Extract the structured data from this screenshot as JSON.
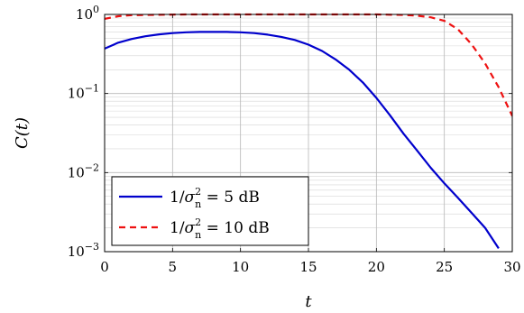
{
  "chart_data": {
    "type": "line",
    "xlabel": "t",
    "ylabel": "C(t)",
    "xlim": [
      0,
      30
    ],
    "ylim": [
      0.001,
      1
    ],
    "yscale": "log",
    "grid": true,
    "legend_position": "bottom-left",
    "x_ticks": [
      "0",
      "5",
      "10",
      "15",
      "20",
      "25",
      "30"
    ],
    "y_ticks": [
      {
        "base": "10",
        "exp": "0"
      },
      {
        "base": "10",
        "exp": "−1"
      },
      {
        "base": "10",
        "exp": "−2"
      },
      {
        "base": "10",
        "exp": "−3"
      }
    ],
    "series": [
      {
        "name": "1/σn² = 5 dB",
        "color": "#0000cc",
        "dash": "solid",
        "x": [
          0,
          1,
          2,
          3,
          4,
          5,
          6,
          7,
          8,
          9,
          10,
          11,
          12,
          13,
          14,
          15,
          16,
          17,
          18,
          19,
          20,
          21,
          22,
          23,
          24,
          25,
          26,
          27,
          28,
          29
        ],
        "y": [
          0.37,
          0.44,
          0.49,
          0.53,
          0.56,
          0.58,
          0.595,
          0.6,
          0.6,
          0.6,
          0.595,
          0.58,
          0.555,
          0.52,
          0.475,
          0.415,
          0.345,
          0.27,
          0.2,
          0.138,
          0.088,
          0.053,
          0.031,
          0.019,
          0.0115,
          0.0073,
          0.0048,
          0.0031,
          0.002,
          0.0011
        ]
      },
      {
        "name": "1/σn² = 10 dB",
        "color": "#ee1111",
        "dash": "dashed",
        "x": [
          0,
          1,
          2,
          4,
          6,
          8,
          10,
          12,
          14,
          16,
          18,
          20,
          22,
          23,
          24,
          25,
          26,
          27,
          28,
          29,
          30
        ],
        "y": [
          0.88,
          0.95,
          0.98,
          0.99,
          1.0,
          1.0,
          1.0,
          1.0,
          1.0,
          1.0,
          1.0,
          1.0,
          0.985,
          0.965,
          0.92,
          0.83,
          0.65,
          0.42,
          0.24,
          0.12,
          0.052
        ]
      }
    ],
    "legend": [
      {
        "prefix": "1/",
        "sym": "σ",
        "sub": "n",
        "sup": "2",
        "suffix": " = 5 dB"
      },
      {
        "prefix": "1/",
        "sym": "σ",
        "sub": "n",
        "sup": "2",
        "suffix": " = 10 dB"
      }
    ]
  }
}
